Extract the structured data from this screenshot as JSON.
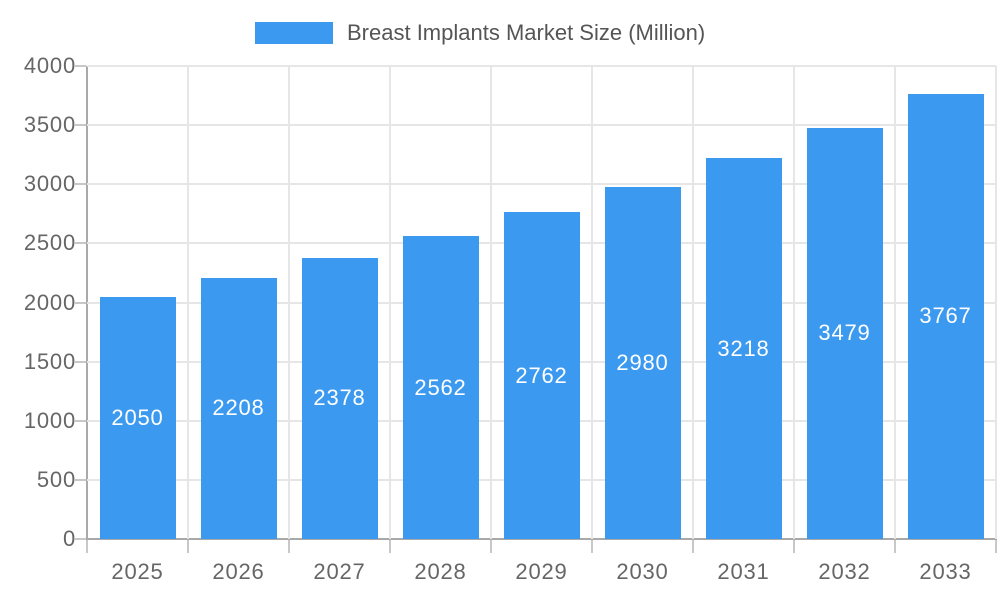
{
  "legend": {
    "label": "Breast Implants Market Size (Million)"
  },
  "colors": {
    "bar": "#3B99F0",
    "axis": "#A9A9A9",
    "tick": "#C8C8C8",
    "grid": "#E6E6E6",
    "tick_label": "#666666",
    "legend_text": "#555555",
    "value_label": "#FFFFFF",
    "background": "#FFFFFF"
  },
  "chart_data": {
    "type": "bar",
    "title": "Breast Implants Market Size (Million)",
    "categories": [
      "2025",
      "2026",
      "2027",
      "2028",
      "2029",
      "2030",
      "2031",
      "2032",
      "2033"
    ],
    "values": [
      2050,
      2208,
      2378,
      2562,
      2762,
      2980,
      3218,
      3479,
      3767
    ],
    "xlabel": "",
    "ylabel": "",
    "ylim": [
      0,
      4000
    ],
    "yticks": [
      0,
      500,
      1000,
      1500,
      2000,
      2500,
      3000,
      3500,
      4000
    ],
    "grid": true,
    "legend_position": "top-center",
    "value_labels": "inside-center"
  }
}
